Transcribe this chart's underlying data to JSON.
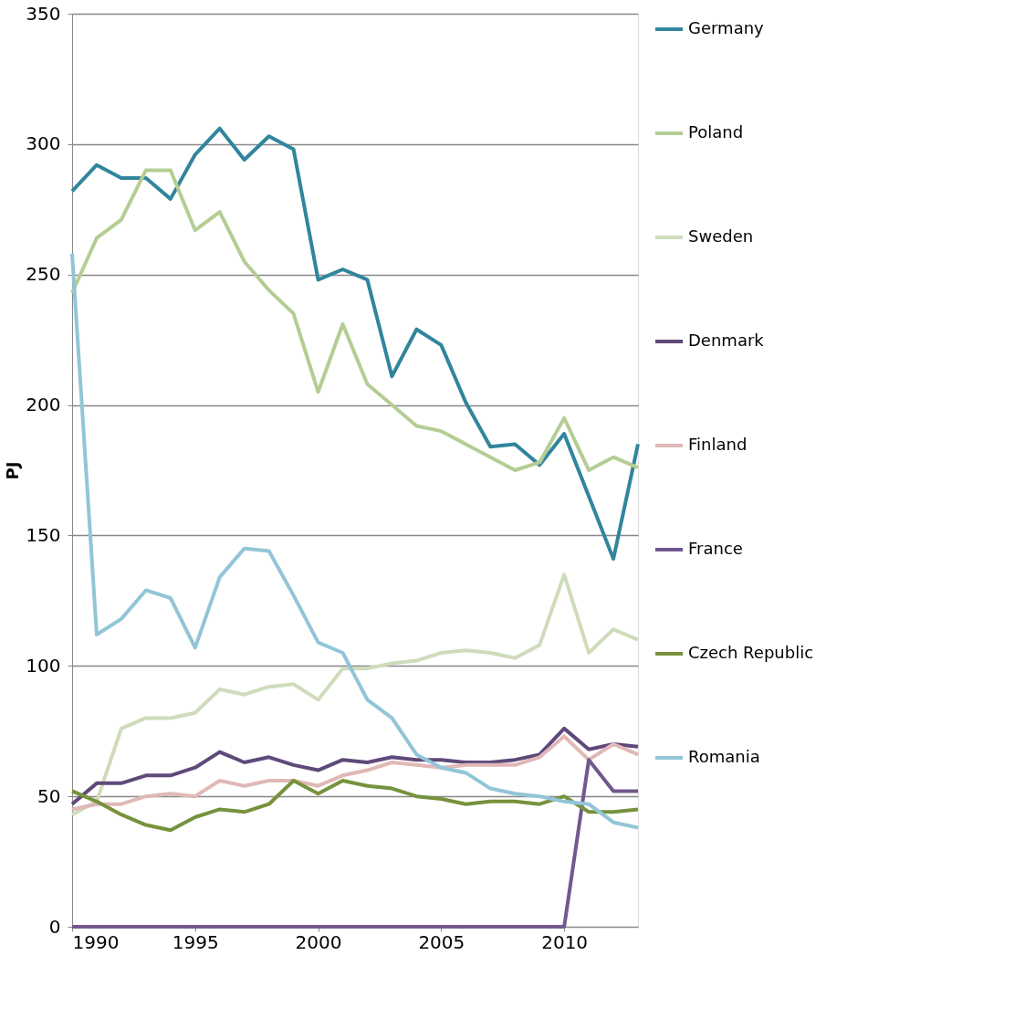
{
  "chart_data": {
    "type": "line",
    "ylabel": "PJ",
    "x": [
      1990,
      1991,
      1992,
      1993,
      1994,
      1995,
      1996,
      1997,
      1998,
      1999,
      2000,
      2001,
      2002,
      2003,
      2004,
      2005,
      2006,
      2007,
      2008,
      2009,
      2010,
      2011,
      2012,
      2013
    ],
    "xlim": [
      1990,
      2013
    ],
    "xticks": [
      1990,
      1995,
      2000,
      2005,
      2010
    ],
    "ylim": [
      0,
      350
    ],
    "yticks": [
      0,
      50,
      100,
      150,
      200,
      250,
      300,
      350
    ],
    "grid": "y",
    "legend": "right",
    "marker": "none",
    "line_style": "solid",
    "series": [
      {
        "name": "Germany",
        "color": "#31859c",
        "values": [
          282,
          292,
          287,
          287,
          279,
          296,
          306,
          294,
          303,
          298,
          248,
          252,
          248,
          211,
          229,
          223,
          201,
          184,
          185,
          177,
          189,
          165,
          141,
          185
        ]
      },
      {
        "name": "Poland",
        "color": "#b5cd94",
        "values": [
          243,
          264,
          271,
          290,
          290,
          267,
          274,
          255,
          244,
          235,
          205,
          231,
          208,
          200,
          192,
          190,
          185,
          180,
          175,
          178,
          195,
          175,
          180,
          176
        ]
      },
      {
        "name": "Sweden",
        "color": "#cfdcbc",
        "values": [
          43,
          48,
          76,
          80,
          80,
          82,
          91,
          89,
          92,
          93,
          87,
          99,
          99,
          101,
          102,
          105,
          106,
          105,
          103,
          108,
          135,
          105,
          114,
          110
        ]
      },
      {
        "name": "Denmark",
        "color": "#5f497a",
        "values": [
          47,
          55,
          55,
          58,
          58,
          61,
          67,
          63,
          65,
          62,
          60,
          64,
          63,
          65,
          64,
          64,
          63,
          63,
          64,
          66,
          76,
          68,
          70,
          69
        ]
      },
      {
        "name": "Finland",
        "color": "#e0b8b7",
        "values": [
          45,
          47,
          47,
          50,
          51,
          50,
          56,
          54,
          56,
          56,
          54,
          58,
          60,
          63,
          62,
          61,
          62,
          62,
          62,
          65,
          73,
          64,
          70,
          66
        ]
      },
      {
        "name": "France",
        "color": "#72588f",
        "values": [
          0,
          0,
          0,
          0,
          0,
          0,
          0,
          0,
          0,
          0,
          0,
          0,
          0,
          0,
          0,
          0,
          0,
          0,
          0,
          0,
          0,
          64,
          52,
          52
        ]
      },
      {
        "name": "Czech Republic",
        "color": "#76923c",
        "values": [
          52,
          48,
          43,
          39,
          37,
          42,
          45,
          44,
          47,
          56,
          51,
          56,
          54,
          53,
          50,
          49,
          47,
          48,
          48,
          47,
          50,
          44,
          44,
          45
        ]
      },
      {
        "name": "Romania",
        "color": "#92c5d8",
        "values": [
          258,
          112,
          118,
          129,
          126,
          107,
          134,
          145,
          144,
          127,
          109,
          105,
          87,
          80,
          66,
          61,
          59,
          53,
          51,
          50,
          48,
          47,
          40,
          38
        ]
      }
    ]
  }
}
